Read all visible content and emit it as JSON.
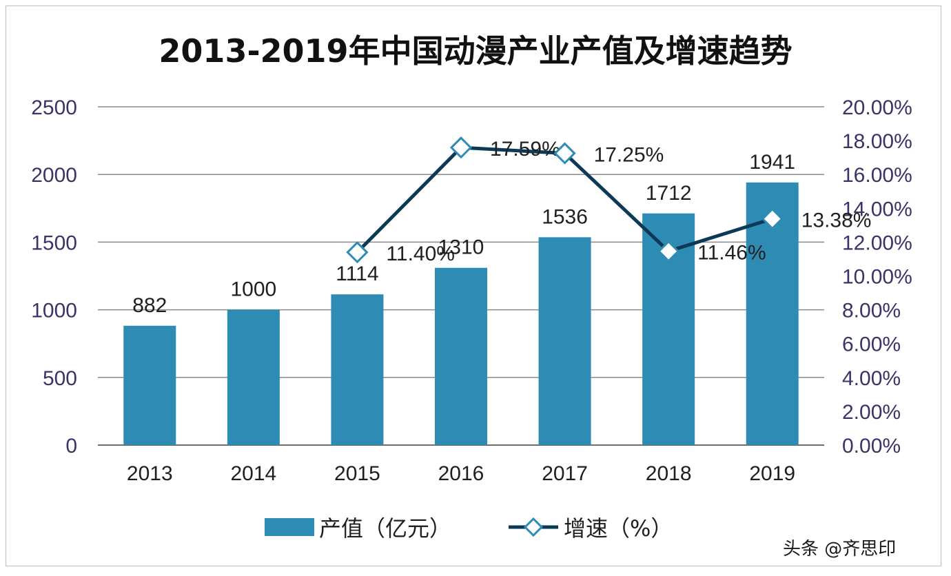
{
  "chart_data": {
    "type": "bar",
    "title": "2013-2019年中国动漫产业产值及增速趋势",
    "categories": [
      "2013",
      "2014",
      "2015",
      "2016",
      "2017",
      "2018",
      "2019"
    ],
    "series": [
      {
        "name": "产值（亿元）",
        "type": "bar",
        "axis": "left",
        "values": [
          882,
          1000,
          1114,
          1310,
          1536,
          1712,
          1941
        ],
        "labels": [
          "882",
          "1000",
          "1114",
          "1310",
          "1536",
          "1712",
          "1941"
        ]
      },
      {
        "name": "增速（%）",
        "type": "line",
        "axis": "right",
        "x": [
          "2015",
          "2016",
          "2017",
          "2018",
          "2019"
        ],
        "values": [
          11.4,
          17.59,
          17.25,
          11.46,
          13.38
        ],
        "labels": [
          "11.40%",
          "17.59%",
          "17.25%",
          "11.46%",
          "13.38%"
        ]
      }
    ],
    "y_left": {
      "ylim": [
        0,
        2500
      ],
      "ticks": [
        "0",
        "500",
        "1000",
        "1500",
        "2000",
        "2500"
      ]
    },
    "y_right": {
      "ylim": [
        0,
        20
      ],
      "ticks": [
        "0.00%",
        "2.00%",
        "4.00%",
        "6.00%",
        "8.00%",
        "10.00%",
        "12.00%",
        "14.00%",
        "16.00%",
        "18.00%",
        "20.00%"
      ]
    },
    "grid": true,
    "legend": "bottom",
    "colors": {
      "bar": "#2e8bb4",
      "line": "#0c3a56",
      "marker_fill": "#ffffff",
      "marker_edge": "#2e8bb4",
      "grid": "#8a8a8a",
      "axis_text": "#3b3368"
    }
  },
  "watermark": "头条 @齐思印"
}
